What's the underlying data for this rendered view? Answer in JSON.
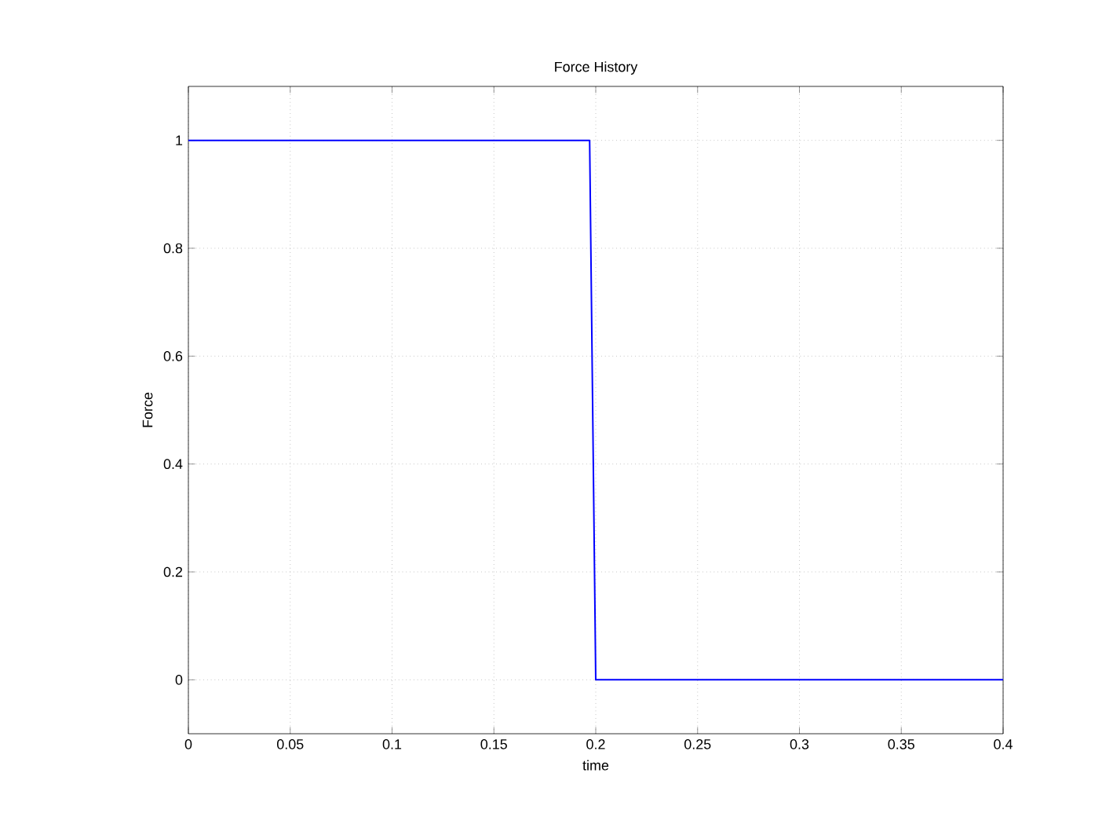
{
  "chart_data": {
    "type": "line",
    "title": "Force History",
    "xlabel": "time",
    "ylabel": "Force",
    "series": [
      {
        "color": "#0000ff",
        "x": [
          0,
          0.197,
          0.2,
          0.4
        ],
        "values": [
          1,
          1,
          0,
          0
        ]
      }
    ],
    "xlim": [
      0,
      0.4
    ],
    "ylim": [
      -0.1,
      1.1
    ],
    "xticks": [
      0,
      0.05,
      0.1,
      0.15,
      0.2,
      0.25,
      0.3,
      0.35,
      0.4
    ],
    "yticks": [
      0,
      0.2,
      0.4,
      0.6,
      0.8,
      1
    ],
    "grid": true
  }
}
